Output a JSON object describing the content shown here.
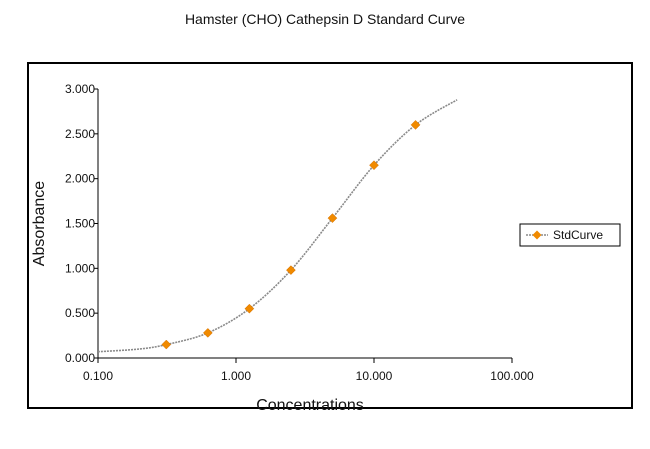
{
  "chart_data": {
    "type": "scatter",
    "title": "Hamster (CHO) Cathepsin D Standard Curve",
    "xlabel": "Concentrations",
    "ylabel": "Absorbance",
    "xscale": "log",
    "xlim": [
      0.1,
      100
    ],
    "ylim": [
      0,
      3
    ],
    "x_ticks": [
      0.1,
      1,
      10,
      100
    ],
    "x_tick_labels": [
      "0.100",
      "1.000",
      "10.000",
      "100.000"
    ],
    "y_ticks": [
      0,
      0.5,
      1,
      1.5,
      2,
      2.5,
      3
    ],
    "y_tick_labels": [
      "0.000",
      "0.500",
      "1.000",
      "1.500",
      "2.000",
      "2.500",
      "3.000"
    ],
    "legend": {
      "position": "right",
      "entries": [
        "StdCurve"
      ]
    },
    "grid": false,
    "series": [
      {
        "name": "StdCurve",
        "marker": "diamond",
        "color": "#f08a00",
        "x": [
          0.3125,
          0.625,
          1.25,
          2.5,
          5,
          10,
          20
        ],
        "y": [
          0.15,
          0.28,
          0.55,
          0.98,
          1.56,
          2.15,
          2.6
        ]
      }
    ],
    "fit_curve": {
      "name": "fitted-curve",
      "x_range": [
        0.1,
        40
      ],
      "x": [
        0.1,
        0.2,
        0.3125,
        0.625,
        1.25,
        2.5,
        5,
        10,
        20,
        40
      ],
      "y": [
        0.07,
        0.1,
        0.15,
        0.28,
        0.55,
        0.98,
        1.56,
        2.15,
        2.6,
        2.88
      ]
    }
  }
}
